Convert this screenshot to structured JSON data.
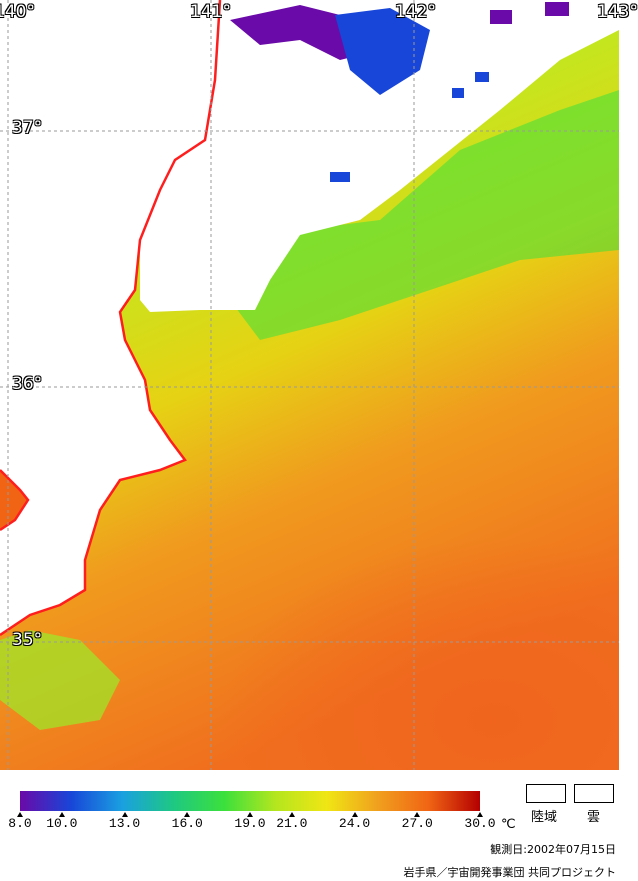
{
  "map": {
    "lon_labels": [
      "140°",
      "141°",
      "142°",
      "143°"
    ],
    "lat_labels": [
      "37°",
      "36°",
      "35°"
    ],
    "colors": {
      "cold_purple": "#6a0aa8",
      "blue": "#1846d8",
      "cyan_green": "#28c890",
      "green": "#3ce03c",
      "yellow_green": "#b4e61e",
      "yellow": "#e6d214",
      "orange": "#f0781e",
      "coast": "#ff1e1e",
      "land_cloud": "#ffffff"
    }
  },
  "legend": {
    "ticks": [
      "8.0",
      "10.0",
      "13.0",
      "16.0",
      "19.0",
      "21.0",
      "24.0",
      "27.0",
      "30.0"
    ],
    "unit": "℃",
    "land_label": "陸域",
    "cloud_label": "雲",
    "gradient": [
      "#6a0aa8",
      "#1846d8",
      "#1aa0e0",
      "#1ec882",
      "#3ce03c",
      "#b4e61e",
      "#f0e614",
      "#f0a01e",
      "#f06414",
      "#b40000"
    ]
  },
  "footer": {
    "date": "観測日:2002年07月15日",
    "credit": "岩手県／宇宙開発事業団 共同プロジェクト"
  }
}
